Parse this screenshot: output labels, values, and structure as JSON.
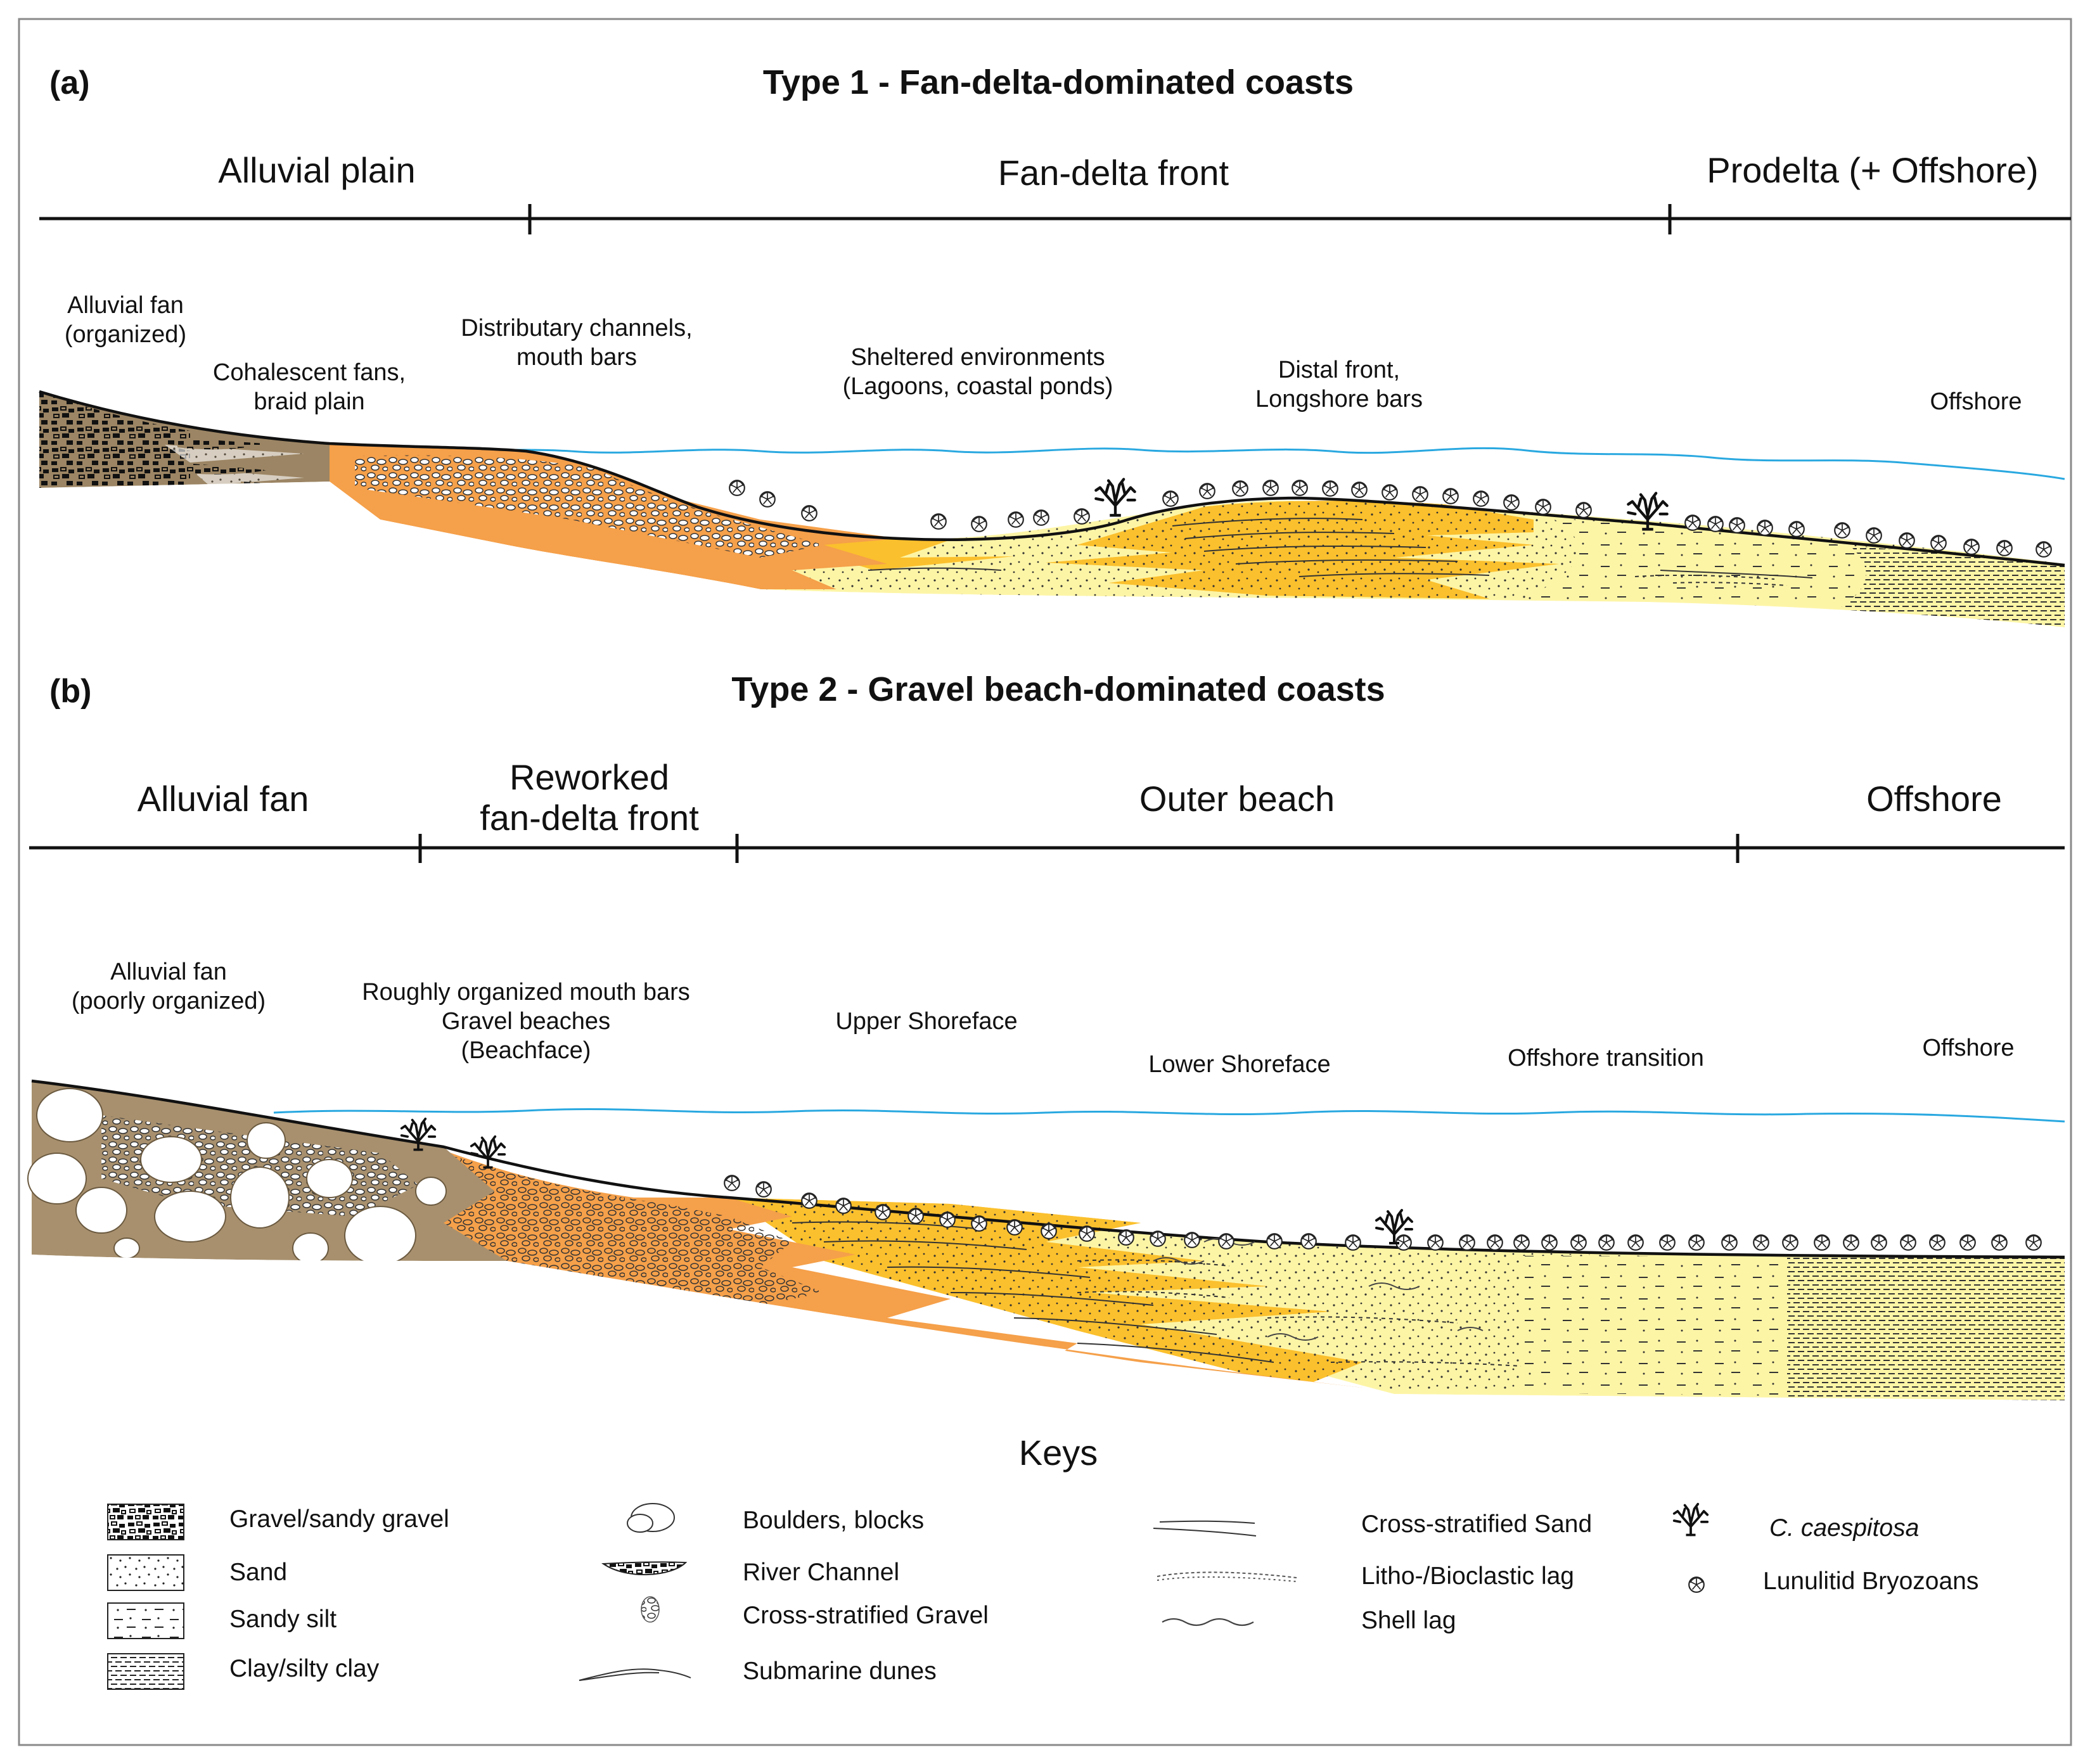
{
  "figure": {
    "panel_a": {
      "letter": "(a)",
      "title": "Type 1 - Fan-delta-dominated coasts",
      "zones": [
        "Alluvial plain",
        "Fan-delta front",
        "Prodelta (+ Offshore)"
      ],
      "environments": {
        "alluvial_fan": [
          "Alluvial fan",
          "(organized)"
        ],
        "cohalescent": [
          "Cohalescent fans,",
          "braid plain"
        ],
        "distributary": [
          "Distributary channels,",
          "mouth bars"
        ],
        "sheltered": [
          "Sheltered environments",
          "(Lagoons, coastal ponds)"
        ],
        "distal": [
          "Distal front,",
          "Longshore bars"
        ],
        "offshore": "Offshore"
      }
    },
    "panel_b": {
      "letter": "(b)",
      "title": "Type 2 - Gravel beach-dominated coasts",
      "zones": {
        "alluvial_fan": "Alluvial fan",
        "reworked_line1": "Reworked",
        "reworked_line2": "fan-delta front",
        "outer_beach": "Outer beach",
        "offshore": "Offshore"
      },
      "environments": {
        "alluvial_fan": [
          "Alluvial fan",
          "(poorly organized)"
        ],
        "mouth_bars": [
          "Roughly organized mouth bars",
          "Gravel beaches",
          "(Beachface)"
        ],
        "upper_shoreface": "Upper Shoreface",
        "lower_shoreface": "Lower Shoreface",
        "offshore_transition": "Offshore transition",
        "offshore": "Offshore"
      }
    },
    "keys": {
      "title": "Keys",
      "col1": [
        "Gravel/sandy gravel",
        "Sand",
        "Sandy silt",
        "Clay/silty clay"
      ],
      "col2": [
        "Boulders, blocks",
        "River Channel",
        "Cross-stratified Gravel",
        "Submarine dunes"
      ],
      "col3": [
        "Cross-stratified Sand",
        "Litho-/Bioclastic lag",
        "Shell lag"
      ],
      "col4": [
        "C. caespitosa",
        "Lunulitid Bryozoans"
      ]
    },
    "colors": {
      "alluvial_brown": "#a8906e",
      "orange": "#f5a04a",
      "gold": "#fbc02d",
      "pale_yellow": "#fdf5a6",
      "water_blue": "#29a8e0"
    },
    "icons": [
      "caespitosa-icon",
      "bryozoan-icon",
      "boulder-icon"
    ]
  }
}
